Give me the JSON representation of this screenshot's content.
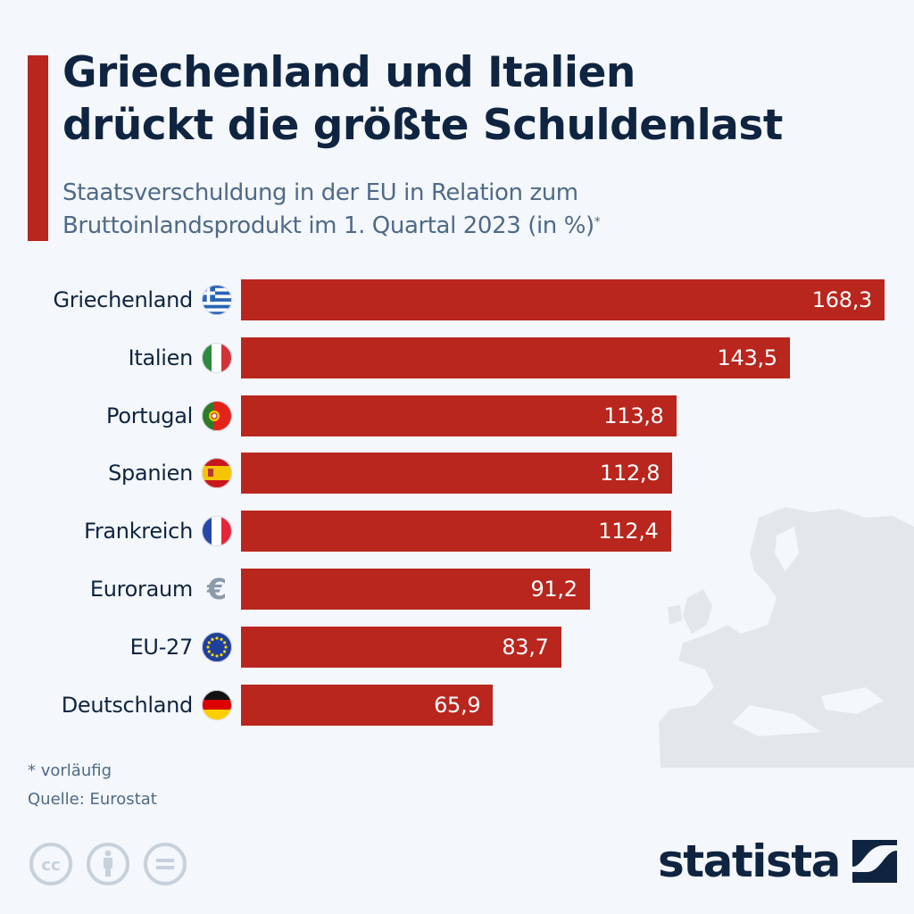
{
  "header": {
    "title_line1": "Griechenland und Italien",
    "title_line2": "drückt die größte Schuldenlast",
    "subtitle_line1": "Staatsverschuldung in der EU in Relation zum",
    "subtitle_line2": "Bruttoinlandsprodukt im 1. Quartal 2023 (in %)",
    "subtitle_mark": "*"
  },
  "colors": {
    "bar": "#b9261e",
    "accent": "#b9261e",
    "title": "#0f2440",
    "subtitle": "#4f6a88",
    "background": "#f4f7fb",
    "map": "#e3e6ea"
  },
  "chart_data": {
    "type": "bar",
    "orientation": "horizontal",
    "title": "Griechenland und Italien drückt die größte Schuldenlast",
    "subtitle": "Staatsverschuldung in der EU in Relation zum Bruttoinlandsprodukt im 1. Quartal 2023 (in %)*",
    "xlabel": "",
    "ylabel": "",
    "unit": "%",
    "grid": false,
    "legend": "none",
    "xlim": [
      0,
      168.3
    ],
    "categories": [
      "Griechenland",
      "Italien",
      "Portugal",
      "Spanien",
      "Frankreich",
      "Euroraum",
      "EU-27",
      "Deutschland"
    ],
    "values": [
      168.3,
      143.5,
      113.8,
      112.8,
      112.4,
      91.2,
      83.7,
      65.9
    ],
    "value_labels": [
      "168,3",
      "143,5",
      "113,8",
      "112,8",
      "112,4",
      "91,2",
      "83,7",
      "65,9"
    ],
    "icons": [
      "flag-greece-icon",
      "flag-italy-icon",
      "flag-portugal-icon",
      "flag-spain-icon",
      "flag-france-icon",
      "euro-icon",
      "flag-eu-icon",
      "flag-germany-icon"
    ]
  },
  "footer": {
    "note": "* vorläufig",
    "source": "Quelle: Eurostat",
    "logo_text": "statista",
    "license_icons": [
      "cc-icon",
      "attribution-icon",
      "no-derivatives-icon"
    ]
  }
}
